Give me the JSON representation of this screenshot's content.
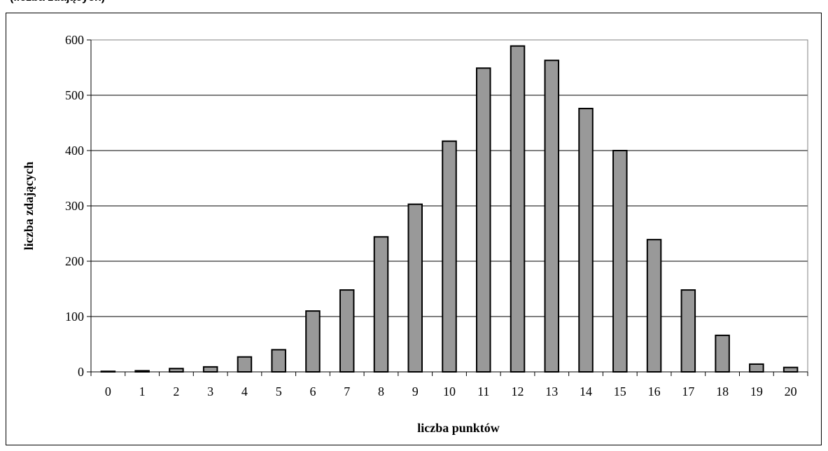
{
  "header": {
    "cropped_title": "(liczba zdających)"
  },
  "chart_data": {
    "type": "bar",
    "title": "",
    "xlabel": "liczba punktów",
    "ylabel": "liczba zdających",
    "categories": [
      "0",
      "1",
      "2",
      "3",
      "4",
      "5",
      "6",
      "7",
      "8",
      "9",
      "10",
      "11",
      "12",
      "13",
      "14",
      "15",
      "16",
      "17",
      "18",
      "19",
      "20"
    ],
    "values": [
      1,
      2,
      6,
      9,
      27,
      40,
      110,
      148,
      244,
      303,
      417,
      549,
      589,
      563,
      476,
      400,
      239,
      148,
      66,
      14,
      8
    ],
    "ylim": [
      0,
      600
    ],
    "yticks": [
      "0",
      "100",
      "200",
      "300",
      "400",
      "500",
      "600"
    ],
    "grid": true,
    "legend": "none",
    "colors": {
      "bar": "#999999",
      "bar_stroke": "#000000",
      "plot_border": "#808080",
      "grid": "#000000"
    }
  }
}
